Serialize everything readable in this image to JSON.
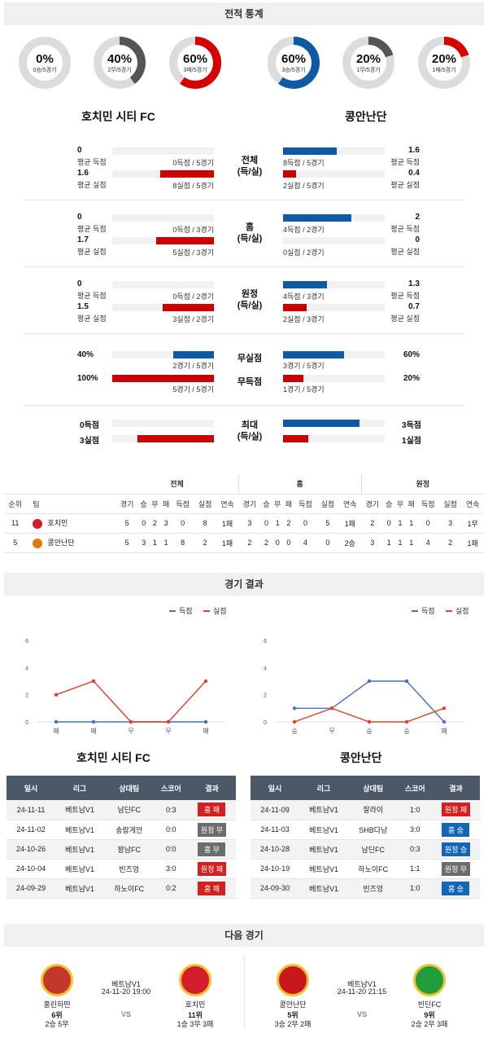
{
  "sections": {
    "stats": "전적 통계",
    "results": "경기 결과",
    "next": "다음 경기"
  },
  "teams": {
    "home": "호치민 시티 FC",
    "away": "콩안난단"
  },
  "donuts": [
    {
      "pct": "0%",
      "sub": "0승/5경기",
      "value": 0,
      "color": "#2a2a2a"
    },
    {
      "pct": "40%",
      "sub": "2무/5경기",
      "value": 0.4,
      "color": "#555555"
    },
    {
      "pct": "60%",
      "sub": "3패/5경기",
      "value": 0.6,
      "color": "#d50000"
    },
    {
      "pct": "60%",
      "sub": "3승/5경기",
      "value": 0.6,
      "color": "#0e5aa7"
    },
    {
      "pct": "20%",
      "sub": "1무/5경기",
      "value": 0.2,
      "color": "#555555"
    },
    {
      "pct": "20%",
      "sub": "1패/5경기",
      "value": 0.2,
      "color": "#d50000"
    }
  ],
  "compare": [
    {
      "title": "전체",
      "sub": "(득/실)",
      "home": [
        {
          "val": "0",
          "lbl": "평균 득점",
          "note": "0득점 / 5경기",
          "frac": 0
        },
        {
          "val": "1.6",
          "lbl": "평균 실점",
          "note": "8실점 / 5경기",
          "frac": 0.53
        }
      ],
      "away": [
        {
          "val": "1.6",
          "lbl": "평균 득점",
          "note": "8득점 / 5경기",
          "frac": 0.53
        },
        {
          "val": "0.4",
          "lbl": "평균 실점",
          "note": "2실점 / 5경기",
          "frac": 0.13
        }
      ]
    },
    {
      "title": "홈",
      "sub": "(득/실)",
      "home": [
        {
          "val": "0",
          "lbl": "평균 득점",
          "note": "0득점 / 3경기",
          "frac": 0
        },
        {
          "val": "1.7",
          "lbl": "평균 실점",
          "note": "5실점 / 3경기",
          "frac": 0.57
        }
      ],
      "away": [
        {
          "val": "2",
          "lbl": "평균 득점",
          "note": "4득점 / 2경기",
          "frac": 0.67
        },
        {
          "val": "0",
          "lbl": "평균 실점",
          "note": "0실점 / 2경기",
          "frac": 0
        }
      ]
    },
    {
      "title": "원정",
      "sub": "(득/실)",
      "home": [
        {
          "val": "0",
          "lbl": "평균 득점",
          "note": "0득점 / 2경기",
          "frac": 0
        },
        {
          "val": "1.5",
          "lbl": "평균 실점",
          "note": "3실점 / 2경기",
          "frac": 0.5
        }
      ],
      "away": [
        {
          "val": "1.3",
          "lbl": "평균 득점",
          "note": "4득점 / 3경기",
          "frac": 0.43
        },
        {
          "val": "0.7",
          "lbl": "평균 실점",
          "note": "2실점 / 3경기",
          "frac": 0.23
        }
      ]
    }
  ],
  "rates": [
    {
      "title": "무실점",
      "home_val": "40%",
      "home_note": "2경기 / 5경기",
      "home_frac": 0.4,
      "away_val": "60%",
      "away_note": "3경기 / 5경기",
      "away_frac": 0.6
    },
    {
      "title": "무득점",
      "home_val": "100%",
      "home_note": "5경기 / 5경기",
      "home_frac": 1.0,
      "away_val": "20%",
      "away_note": "1경기 / 5경기",
      "away_frac": 0.2
    }
  ],
  "max": {
    "title": "최대",
    "sub": "(득/실)",
    "home_goal": "0득점",
    "home_conc": "3실점",
    "home_goal_frac": 0,
    "home_conc_frac": 0.75,
    "away_goal": "3득점",
    "away_conc": "1실점",
    "away_goal_frac": 0.75,
    "away_conc_frac": 0.25
  },
  "rank": {
    "groups": [
      "전체",
      "홈",
      "원정"
    ],
    "headers": [
      "순위",
      "팀",
      "경기",
      "승",
      "무",
      "패",
      "득점",
      "실점",
      "연속",
      "경기",
      "승",
      "무",
      "패",
      "득점",
      "실점",
      "연속",
      "경기",
      "승",
      "무",
      "패",
      "득점",
      "실점",
      "연속"
    ],
    "rows": [
      [
        "11",
        "호치민",
        "5",
        "0",
        "2",
        "3",
        "0",
        "8",
        "1패",
        "3",
        "0",
        "1",
        "2",
        "0",
        "5",
        "1패",
        "2",
        "0",
        "1",
        "1",
        "0",
        "3",
        "1무"
      ],
      [
        "5",
        "콩안난단",
        "5",
        "3",
        "1",
        "1",
        "8",
        "2",
        "1패",
        "2",
        "2",
        "0",
        "0",
        "4",
        "0",
        "2승",
        "3",
        "1",
        "1",
        "1",
        "4",
        "2",
        "1패"
      ]
    ]
  },
  "legend": {
    "scored": "득점",
    "conceded": "실점"
  },
  "chart_data": [
    {
      "type": "line",
      "categories": [
        "패",
        "패",
        "무",
        "무",
        "패"
      ],
      "series": [
        {
          "name": "득점",
          "values": [
            0,
            0,
            0,
            0,
            0
          ],
          "color": "#4472c4"
        },
        {
          "name": "실점",
          "values": [
            2,
            3,
            0,
            0,
            3
          ],
          "color": "#e0412a"
        }
      ],
      "ylim": [
        0,
        6
      ],
      "yticks": [
        0,
        2,
        4,
        6
      ]
    },
    {
      "type": "line",
      "categories": [
        "승",
        "무",
        "승",
        "승",
        "패"
      ],
      "series": [
        {
          "name": "득점",
          "values": [
            1,
            1,
            3,
            3,
            0
          ],
          "color": "#4472c4"
        },
        {
          "name": "실점",
          "values": [
            0,
            1,
            0,
            0,
            1
          ],
          "color": "#e0412a"
        }
      ],
      "ylim": [
        0,
        6
      ],
      "yticks": [
        0,
        2,
        4,
        6
      ]
    }
  ],
  "results": {
    "headers": [
      "일시",
      "리그",
      "상대팀",
      "스코어",
      "결과"
    ],
    "home": [
      [
        "24-11-11",
        "베트남V1",
        "남딘FC",
        "0:3",
        "홈 패",
        "loss"
      ],
      [
        "24-11-02",
        "베트남V1",
        "송람게안",
        "0:0",
        "원정 무",
        "draw"
      ],
      [
        "24-10-26",
        "베트남V1",
        "꽝남FC",
        "0:0",
        "홈 무",
        "draw"
      ],
      [
        "24-10-04",
        "베트남V1",
        "빈즈엉",
        "3:0",
        "원정 패",
        "loss"
      ],
      [
        "24-09-29",
        "베트남V1",
        "하노이FC",
        "0:2",
        "홈 패",
        "loss"
      ]
    ],
    "away": [
      [
        "24-11-09",
        "베트남V1",
        "잘라이",
        "1:0",
        "원정 패",
        "loss"
      ],
      [
        "24-11-03",
        "베트남V1",
        "SHB다낭",
        "3:0",
        "홈 승",
        "win"
      ],
      [
        "24-10-28",
        "베트남V1",
        "남딘FC",
        "0:3",
        "원정 승",
        "win"
      ],
      [
        "24-10-19",
        "베트남V1",
        "하노이FC",
        "1:1",
        "원정 무",
        "draw"
      ],
      [
        "24-09-30",
        "베트남V1",
        "빈즈엉",
        "1:0",
        "홈 승",
        "win"
      ]
    ]
  },
  "next": [
    {
      "league": "베트남V1",
      "time": "24-11-20 19:00",
      "vs": "VS",
      "left": {
        "name": "홍린하띤",
        "rank": "6위",
        "record": "2승 5무",
        "logo_color": "#c0392b"
      },
      "right": {
        "name": "호치민",
        "rank": "11위",
        "record": "1승 3무 3패",
        "logo_color": "#d51c2b"
      }
    },
    {
      "league": "베트남V1",
      "time": "24-11-20 21:15",
      "vs": "VS",
      "left": {
        "name": "콩안난단",
        "rank": "5위",
        "record": "3승 2무 2패",
        "logo_color": "#c9171e"
      },
      "right": {
        "name": "빈딘FC",
        "rank": "9위",
        "record": "2승 2무 3패",
        "logo_color": "#1f9e3b"
      }
    }
  ]
}
